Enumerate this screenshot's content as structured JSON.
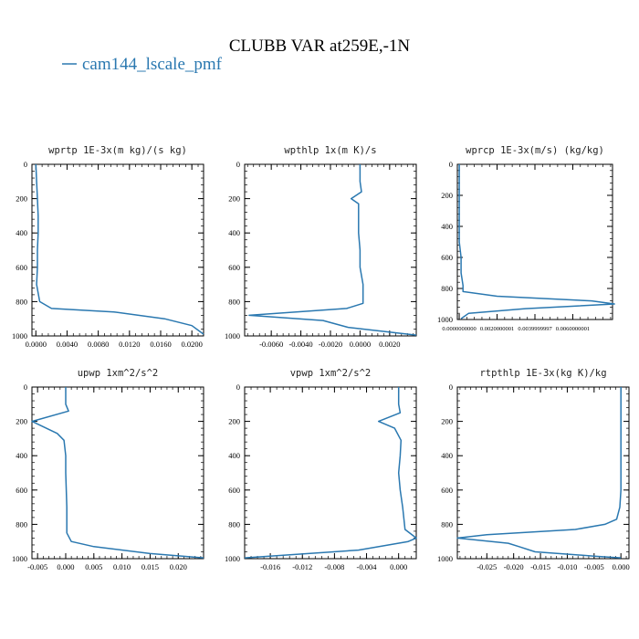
{
  "figure": {
    "title": "CLUBB VAR at259E,-1N",
    "legend_label": "cam144_lscale_pmf",
    "line_color": "#2a78b0"
  },
  "chart_data": [
    {
      "type": "line",
      "title": "wprtp  1E-3x(m kg)/(s kg)",
      "xlim": [
        -0.0005,
        0.0215
      ],
      "ylim": [
        0,
        1000
      ],
      "y_inverted": true,
      "xticks": [
        0,
        0.004,
        0.008,
        0.012,
        0.016,
        0.02
      ],
      "xtick_labels": [
        "0.0000",
        "0.0040",
        "0.0080",
        "0.0120",
        "0.0160",
        "0.0200"
      ],
      "yticks": [
        0,
        200,
        400,
        600,
        800,
        1000
      ],
      "ytick_labels": [
        "0",
        "200",
        "400",
        "600",
        "800",
        "1000"
      ],
      "series": [
        {
          "x": [
            0.0,
            0.0001,
            0.0002,
            0.0003,
            0.0003,
            0.0002,
            0.0002,
            0.0001,
            0.0005,
            0.002,
            0.01,
            0.0165,
            0.02,
            0.0215
          ],
          "y": [
            0,
            100,
            200,
            300,
            400,
            500,
            600,
            700,
            800,
            840,
            860,
            900,
            940,
            990
          ]
        }
      ]
    },
    {
      "type": "line",
      "title": "wpthlp  1x(m K)/s",
      "xlim": [
        -0.0078,
        0.0038
      ],
      "ylim": [
        0,
        1000
      ],
      "y_inverted": true,
      "xticks": [
        -0.006,
        -0.004,
        -0.002,
        0,
        0.002
      ],
      "xtick_labels": [
        "-0.0060",
        "-0.0040",
        "-0.0020",
        "0.0000",
        "0.0020"
      ],
      "yticks": [
        0,
        200,
        400,
        600,
        800,
        1000
      ],
      "ytick_labels": [
        "0",
        "200",
        "400",
        "600",
        "800",
        "1000"
      ],
      "series": [
        {
          "x": [
            0.0,
            0.0,
            0.0001,
            -0.0006,
            -0.0001,
            -0.0001,
            -0.0001,
            0.0,
            0.0,
            0.0002,
            0.0002,
            -0.0009,
            -0.0075,
            -0.0025,
            -0.0008,
            0.0038
          ],
          "y": [
            0,
            100,
            160,
            200,
            230,
            300,
            400,
            500,
            600,
            700,
            810,
            840,
            880,
            910,
            950,
            995
          ]
        }
      ]
    },
    {
      "type": "line",
      "title": "wprcp  1E-3x(m/s) (kg/kg)",
      "xlim": [
        -0.0001,
        0.0081
      ],
      "ylim": [
        0,
        1000
      ],
      "y_inverted": true,
      "xticks": [
        0,
        0.002,
        0.004,
        0.006
      ],
      "xtick_labels": [
        "0.0000000000",
        "0.0020000001",
        "0.0039999997",
        "0.0060000001"
      ],
      "yticks": [
        0,
        200,
        400,
        600,
        800,
        1000
      ],
      "ytick_labels": [
        "0",
        "200",
        "400",
        "600",
        "800",
        "1000"
      ],
      "series": [
        {
          "x": [
            0,
            0,
            0.0001,
            0.0001,
            0.0002,
            0.0002,
            0.002,
            0.007,
            0.0082,
            0.0035,
            0.0005,
            0.0001
          ],
          "y": [
            0,
            500,
            600,
            700,
            780,
            820,
            850,
            880,
            900,
            930,
            960,
            995
          ]
        }
      ]
    },
    {
      "type": "line",
      "title": "upwp  1xm^2/s^2",
      "xlim": [
        -0.006,
        0.0245
      ],
      "ylim": [
        0,
        1000
      ],
      "y_inverted": true,
      "xticks": [
        -0.005,
        0,
        0.005,
        0.01,
        0.015,
        0.02
      ],
      "xtick_labels": [
        "-0.005",
        "0.000",
        "0.005",
        "0.010",
        "0.015",
        "0.020"
      ],
      "yticks": [
        0,
        200,
        400,
        600,
        800,
        1000
      ],
      "ytick_labels": [
        "0",
        "200",
        "400",
        "600",
        "800",
        "1000"
      ],
      "series": [
        {
          "x": [
            0.0,
            0.0,
            0.0005,
            -0.006,
            -0.0015,
            -0.0003,
            0.0,
            0.0,
            0.0001,
            0.0002,
            0.0002,
            0.001,
            0.005,
            0.015,
            0.0245
          ],
          "y": [
            0,
            100,
            140,
            200,
            270,
            310,
            400,
            500,
            600,
            700,
            850,
            900,
            930,
            970,
            995
          ]
        }
      ]
    },
    {
      "type": "line",
      "title": "vpwp  1xm^2/s^2",
      "xlim": [
        -0.0192,
        0.0022
      ],
      "ylim": [
        0,
        1000
      ],
      "y_inverted": true,
      "xticks": [
        -0.016,
        -0.012,
        -0.008,
        -0.004,
        0
      ],
      "xtick_labels": [
        "-0.016",
        "-0.012",
        "-0.008",
        "-0.004",
        "0.000"
      ],
      "yticks": [
        0,
        200,
        400,
        600,
        800,
        1000
      ],
      "ytick_labels": [
        "0",
        "200",
        "400",
        "600",
        "800",
        "1000"
      ],
      "series": [
        {
          "x": [
            0.0,
            0.0,
            0.0002,
            -0.0025,
            -0.0005,
            0.0003,
            0.0002,
            0.0,
            0.0002,
            0.0005,
            0.0008,
            0.0022,
            0.0012,
            -0.005,
            -0.0192
          ],
          "y": [
            0,
            100,
            150,
            200,
            240,
            310,
            400,
            500,
            600,
            700,
            830,
            880,
            900,
            950,
            995
          ]
        }
      ]
    },
    {
      "type": "line",
      "title": "rtpthlp  1E-3x(kg K)/kg",
      "xlim": [
        -0.0305,
        0.0015
      ],
      "ylim": [
        0,
        1000
      ],
      "y_inverted": true,
      "xticks": [
        -0.025,
        -0.02,
        -0.015,
        -0.01,
        -0.005,
        0
      ],
      "xtick_labels": [
        "-0.025",
        "-0.020",
        "-0.015",
        "-0.010",
        "-0.005",
        "0.000"
      ],
      "yticks": [
        0,
        200,
        400,
        600,
        800,
        1000
      ],
      "ytick_labels": [
        "0",
        "200",
        "400",
        "600",
        "800",
        "1000"
      ],
      "series": [
        {
          "x": [
            0.0,
            0.0,
            0.0,
            0.0,
            -0.0002,
            -0.0008,
            -0.003,
            -0.0085,
            -0.025,
            -0.0305,
            -0.021,
            -0.019,
            -0.016,
            -0.005,
            0.0
          ],
          "y": [
            0,
            200,
            400,
            600,
            700,
            770,
            800,
            830,
            860,
            880,
            910,
            930,
            960,
            985,
            995
          ]
        }
      ]
    }
  ]
}
